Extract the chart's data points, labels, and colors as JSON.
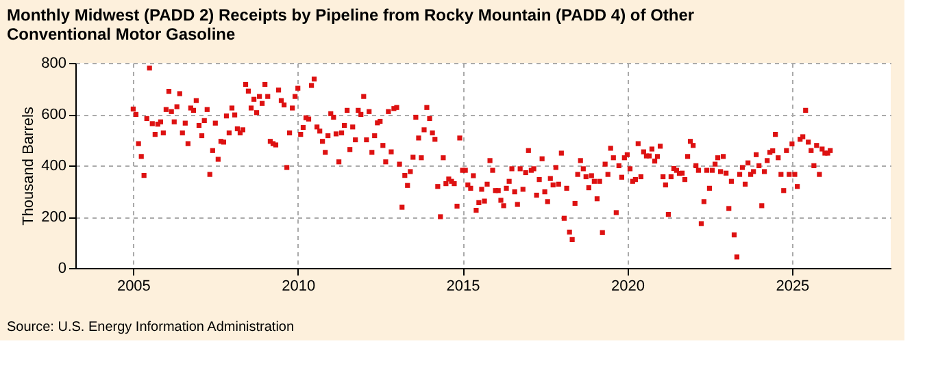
{
  "chart_data": {
    "type": "scatter",
    "title": [
      "Monthly Midwest (PADD 2) Receipts by Pipeline from Rocky Mountain (PADD 4) of Other",
      "Conventional Motor Gasoline"
    ],
    "ylabel": "Thousand Barrels",
    "annotations": [
      "Source: U.S. Energy Information Administration"
    ],
    "xlim": [
      "2003-04",
      "2028-01"
    ],
    "xticks": [
      "2005",
      "2010",
      "2015",
      "2020",
      "2025"
    ],
    "ylim": [
      0,
      800
    ],
    "yticks": [
      0,
      200,
      400,
      600,
      800
    ],
    "grid": true,
    "marker": "square",
    "x": [
      "2005-01",
      "2005-02",
      "2005-03",
      "2005-04",
      "2005-05",
      "2005-06",
      "2005-07",
      "2005-08",
      "2005-09",
      "2005-10",
      "2005-11",
      "2005-12",
      "2006-01",
      "2006-02",
      "2006-03",
      "2006-04",
      "2006-05",
      "2006-06",
      "2006-07",
      "2006-08",
      "2006-09",
      "2006-10",
      "2006-11",
      "2006-12",
      "2007-01",
      "2007-02",
      "2007-03",
      "2007-04",
      "2007-05",
      "2007-06",
      "2007-07",
      "2007-08",
      "2007-09",
      "2007-10",
      "2007-11",
      "2007-12",
      "2008-01",
      "2008-02",
      "2008-03",
      "2008-04",
      "2008-05",
      "2008-06",
      "2008-07",
      "2008-08",
      "2008-09",
      "2008-10",
      "2008-11",
      "2008-12",
      "2009-01",
      "2009-02",
      "2009-03",
      "2009-04",
      "2009-05",
      "2009-06",
      "2009-07",
      "2009-08",
      "2009-09",
      "2009-10",
      "2009-11",
      "2009-12",
      "2010-01",
      "2010-02",
      "2010-03",
      "2010-04",
      "2010-05",
      "2010-06",
      "2010-07",
      "2010-08",
      "2010-09",
      "2010-10",
      "2010-11",
      "2010-12",
      "2011-01",
      "2011-02",
      "2011-03",
      "2011-04",
      "2011-05",
      "2011-06",
      "2011-07",
      "2011-08",
      "2011-09",
      "2011-10",
      "2011-11",
      "2011-12",
      "2012-01",
      "2012-02",
      "2012-03",
      "2012-04",
      "2012-05",
      "2012-06",
      "2012-07",
      "2012-08",
      "2012-09",
      "2012-10",
      "2012-11",
      "2012-12",
      "2013-01",
      "2013-02",
      "2013-03",
      "2013-04",
      "2013-05",
      "2013-06",
      "2013-07",
      "2013-08",
      "2013-09",
      "2013-10",
      "2013-11",
      "2013-12",
      "2014-01",
      "2014-02",
      "2014-03",
      "2014-04",
      "2014-05",
      "2014-06",
      "2014-07",
      "2014-08",
      "2014-09",
      "2014-10",
      "2014-11",
      "2014-12",
      "2015-01",
      "2015-02",
      "2015-03",
      "2015-04",
      "2015-05",
      "2015-06",
      "2015-07",
      "2015-08",
      "2015-09",
      "2015-10",
      "2015-11",
      "2015-12",
      "2016-01",
      "2016-02",
      "2016-03",
      "2016-04",
      "2016-05",
      "2016-06",
      "2016-07",
      "2016-08",
      "2016-09",
      "2016-10",
      "2016-11",
      "2016-12",
      "2017-01",
      "2017-02",
      "2017-03",
      "2017-04",
      "2017-05",
      "2017-06",
      "2017-07",
      "2017-08",
      "2017-09",
      "2017-10",
      "2017-11",
      "2017-12",
      "2018-01",
      "2018-02",
      "2018-03",
      "2018-04",
      "2018-05",
      "2018-06",
      "2018-07",
      "2018-08",
      "2018-09",
      "2018-10",
      "2018-11",
      "2018-12",
      "2019-01",
      "2019-02",
      "2019-03",
      "2019-04",
      "2019-05",
      "2019-06",
      "2019-07",
      "2019-08",
      "2019-09",
      "2019-10",
      "2019-11",
      "2019-12",
      "2020-01",
      "2020-02",
      "2020-03",
      "2020-04",
      "2020-05",
      "2020-06",
      "2020-07",
      "2020-08",
      "2020-09",
      "2020-10",
      "2020-11",
      "2020-12",
      "2021-01",
      "2021-02",
      "2021-03",
      "2021-04",
      "2021-05",
      "2021-06",
      "2021-07",
      "2021-08",
      "2021-09",
      "2021-10",
      "2021-11",
      "2021-12",
      "2022-01",
      "2022-02",
      "2022-03",
      "2022-04",
      "2022-05",
      "2022-06",
      "2022-07",
      "2022-08",
      "2022-09",
      "2022-10",
      "2022-11",
      "2022-12",
      "2023-01",
      "2023-02",
      "2023-03",
      "2023-04",
      "2023-05",
      "2023-06",
      "2023-07",
      "2023-08",
      "2023-09",
      "2023-10",
      "2023-11",
      "2023-12",
      "2024-01",
      "2024-02",
      "2024-03",
      "2024-04",
      "2024-05",
      "2024-06",
      "2024-07",
      "2024-08",
      "2024-09",
      "2024-10",
      "2024-11",
      "2024-12",
      "2025-01",
      "2025-02",
      "2025-03",
      "2025-04",
      "2025-05",
      "2025-06",
      "2025-07",
      "2025-08",
      "2025-09",
      "2025-10",
      "2025-11",
      "2025-12",
      "2026-01",
      "2026-02",
      "2026-03"
    ],
    "series": [
      {
        "color": "#dd1111",
        "values": [
          620,
          599,
          485,
          435,
          361,
          583,
          780,
          563,
          521,
          561,
          570,
          527,
          618,
          689,
          610,
          570,
          629,
          680,
          527,
          565,
          485,
          624,
          615,
          653,
          556,
          516,
          575,
          618,
          365,
          458,
          565,
          424,
          494,
          491,
          593,
          527,
          624,
          597,
          543,
          527,
          539,
          716,
          690,
          624,
          658,
          606,
          669,
          642,
          716,
          669,
          494,
          485,
          480,
          694,
          653,
          636,
          392,
          527,
          624,
          669,
          701,
          521,
          548,
          586,
          581,
          712,
          737,
          550,
          534,
          494,
          451,
          516,
          602,
          588,
          523,
          414,
          527,
          556,
          615,
          462,
          550,
          500,
          615,
          599,
          669,
          500,
          610,
          451,
          516,
          566,
          572,
          478,
          414,
          610,
          453,
          622,
          626,
          405,
          237,
          361,
          322,
          376,
          432,
          588,
          507,
          430,
          539,
          626,
          583,
          527,
          502,
          318,
          200,
          430,
          329,
          347,
          338,
          329,
          241,
          507,
          381,
          381,
          324,
          311,
          360,
          225,
          255,
          307,
          261,
          327,
          419,
          381,
          302,
          302,
          264,
          243,
          311,
          338,
          387,
          297,
          248,
          387,
          307,
          372,
          458,
          381,
          387,
          284,
          345,
          426,
          297,
          259,
          349,
          324,
          392,
          327,
          448,
          194,
          311,
          140,
          111,
          252,
          365,
          419,
          387,
          356,
          313,
          360,
          338,
          270,
          338,
          138,
          405,
          365,
          467,
          430,
          216,
          399,
          354,
          430,
          442,
          387,
          338,
          345,
          485,
          356,
          453,
          437,
          437,
          464,
          417,
          435,
          475,
          356,
          324,
          209,
          356,
          388,
          381,
          369,
          370,
          345,
          435,
          494,
          478,
          399,
          381,
          173,
          259,
          381,
          311,
          381,
          405,
          430,
          376,
          435,
          370,
          232,
          338,
          129,
          43,
          365,
          392,
          327,
          410,
          365,
          376,
          442,
          399,
          243,
          376,
          419,
          451,
          457,
          521,
          430,
          365,
          302,
          458,
          365,
          484,
          365,
          318,
          502,
          512,
          615,
          491,
          458,
          399,
          478,
          365,
          464,
          448,
          448,
          458
        ]
      }
    ]
  }
}
